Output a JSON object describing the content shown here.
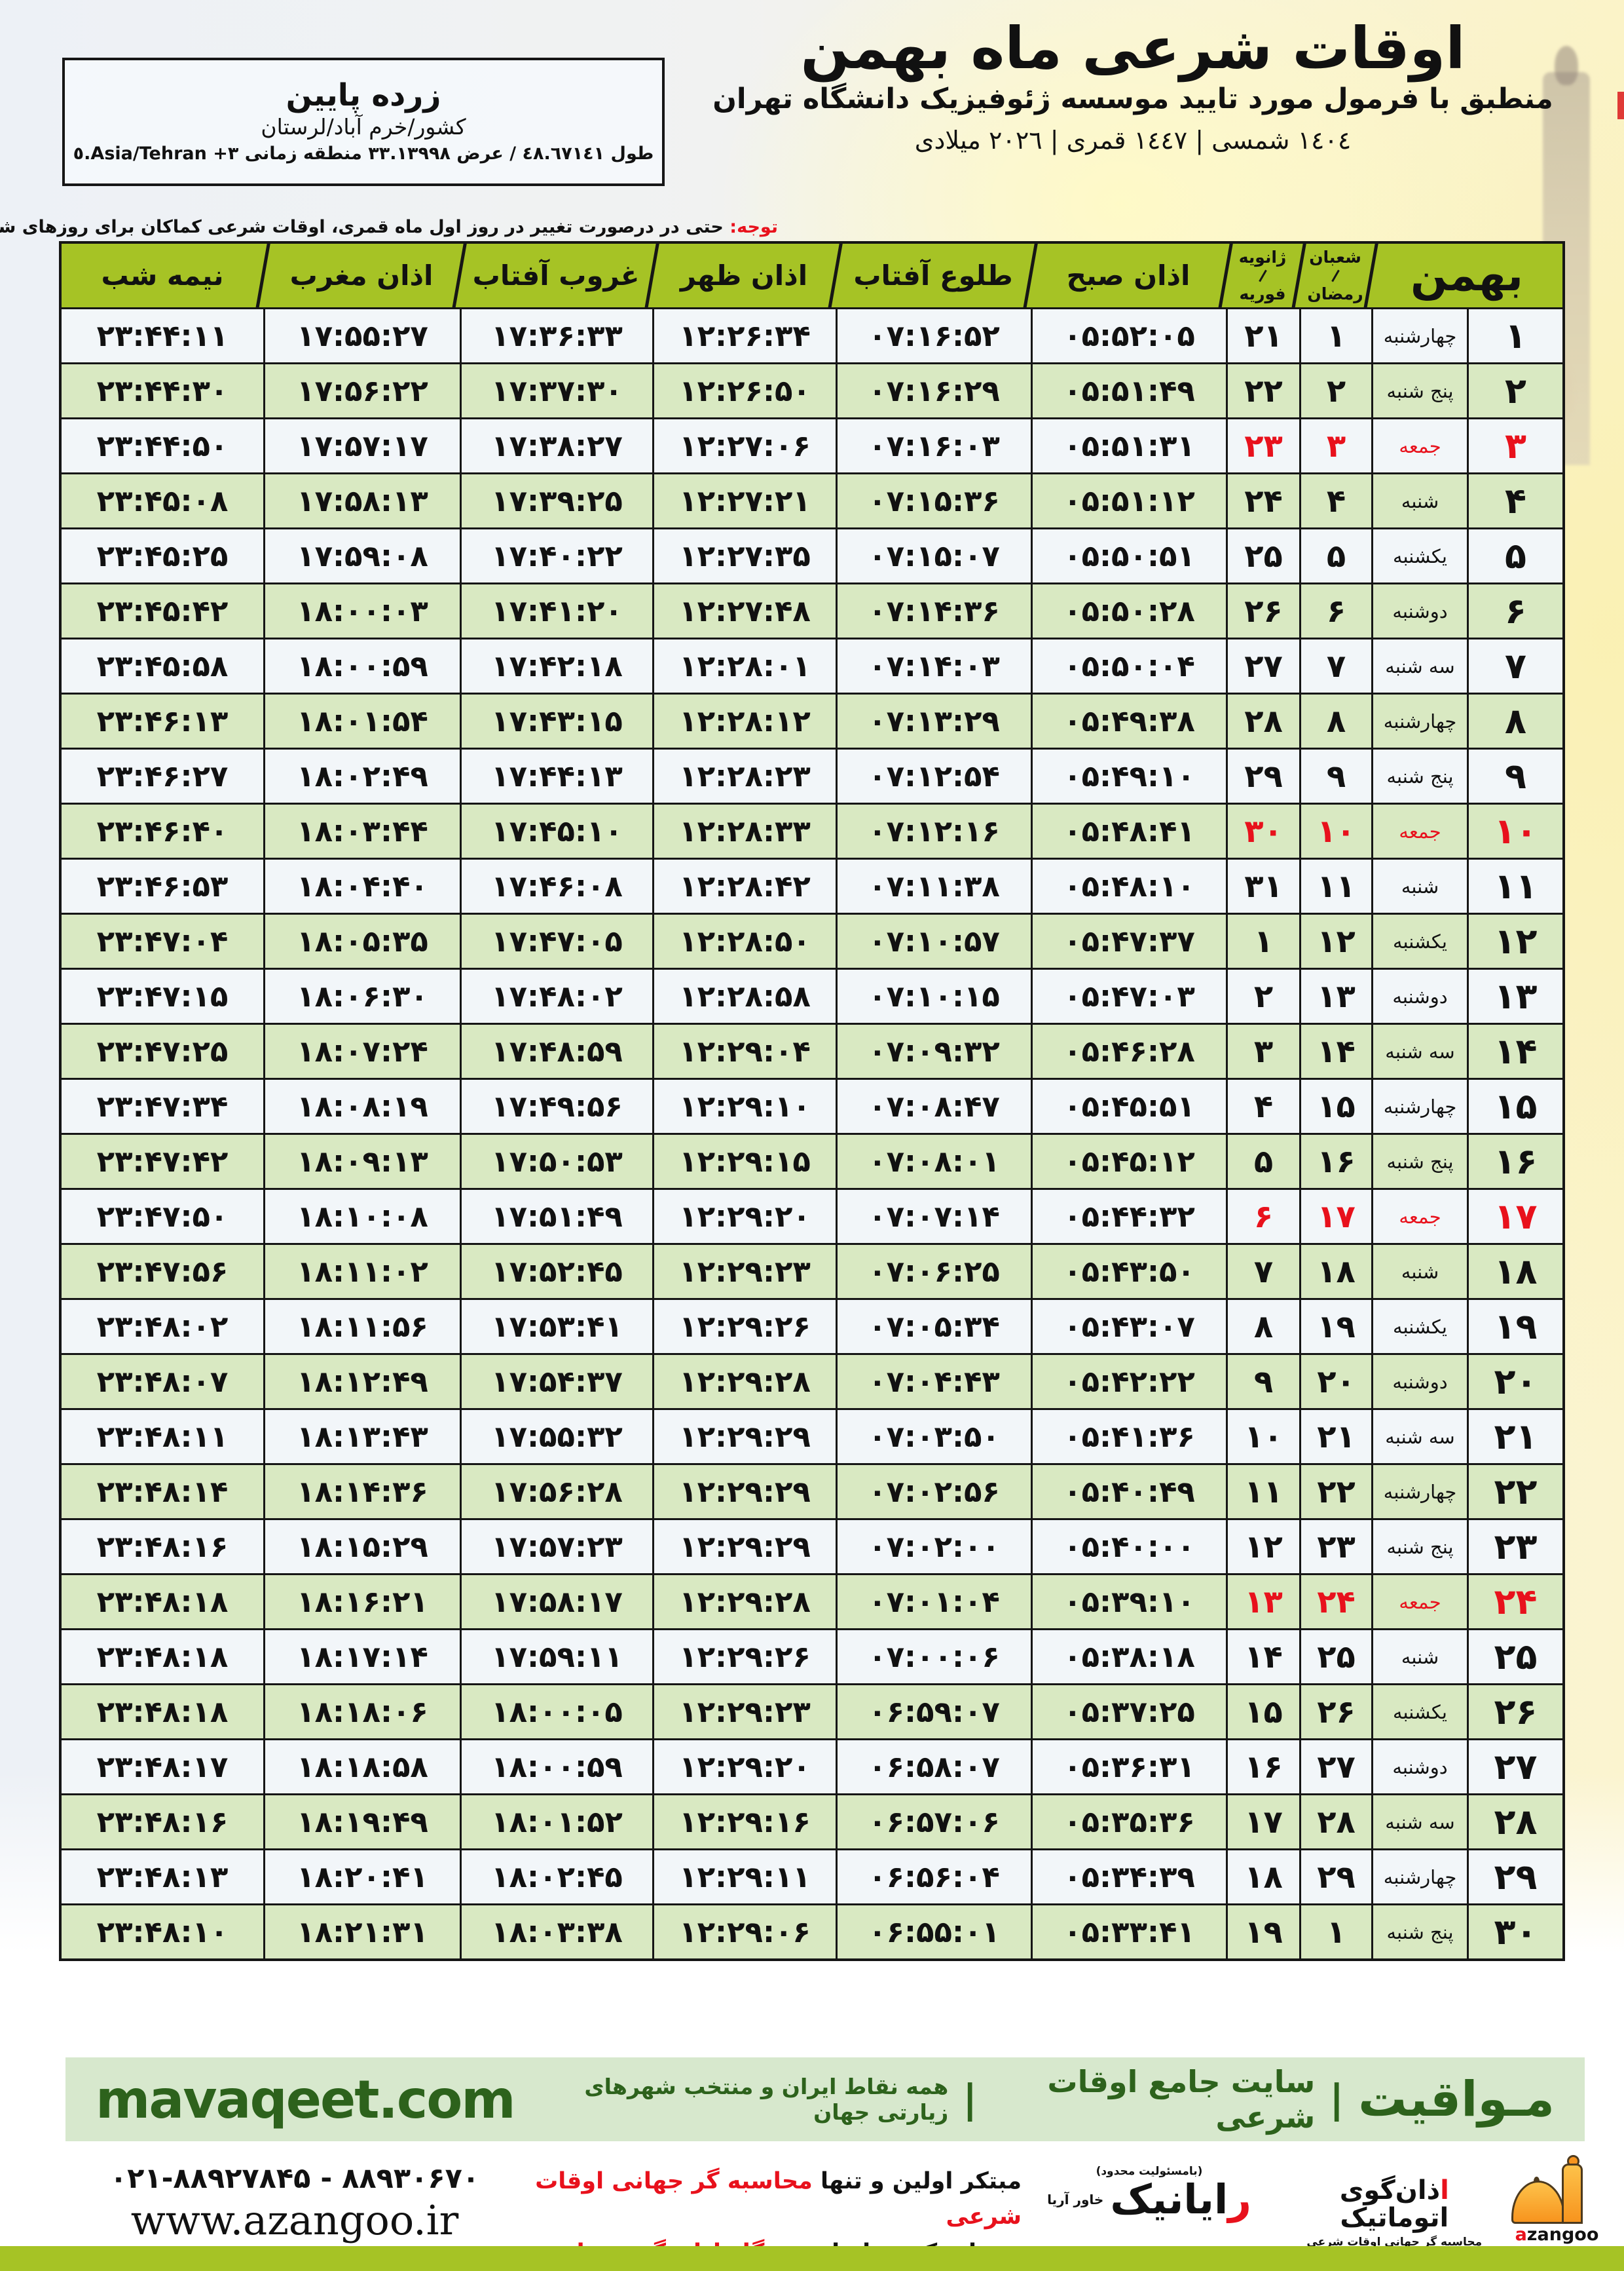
{
  "location": {
    "name": "زرده پایین",
    "region": "کشور/خرم آباد/لرستان",
    "coords": "طول ٤٨.٦٧١٤١ / عرض ۳۳.۱۳۹۹۸ منطقه زمانی Asia/Tehran +۳.٥"
  },
  "header": {
    "title": "اوقات شرعی ماه بهمن",
    "subtitle": "منطبق با فرمول مورد تایید موسسه ژئوفیزیک دانشگاه تهران",
    "dates": "١٤٠٤ شمسی | ١٤٤٧ قمری | ٢٠٢٦ میلادی"
  },
  "notice": {
    "label": "توجه:",
    "text": " حتی در درصورت تغییر در روز اول ماه قمری، اوقات شرعی کماکان برای روزهای شمسی و میلادی معتبر است."
  },
  "table": {
    "headers": {
      "month": "بهمن",
      "hijri_top": "شعبان",
      "hijri_bottom": "رمضان",
      "greg_top": "ژانویه",
      "greg_bottom": "فوریه",
      "sobh": "اذان صبح",
      "tolu": "طلوع آفتاب",
      "zohr": "اذان ظهر",
      "ghorub": "غروب آفتاب",
      "maghreb": "اذان مغرب",
      "nimeshab": "نیمه شب"
    },
    "rows": [
      {
        "day": "۱",
        "weekday": "چهارشنبه",
        "hijri": "۱",
        "greg": "۲۱",
        "sobh": "۰۵:۵۲:۰۵",
        "tolu": "۰۷:۱۶:۵۲",
        "zohr": "۱۲:۲۶:۳۴",
        "ghorub": "۱۷:۳۶:۳۳",
        "maghreb": "۱۷:۵۵:۲۷",
        "nimeshab": "۲۳:۴۴:۱۱",
        "red": false
      },
      {
        "day": "۲",
        "weekday": "پنج شنبه",
        "hijri": "۲",
        "greg": "۲۲",
        "sobh": "۰۵:۵۱:۴۹",
        "tolu": "۰۷:۱۶:۲۹",
        "zohr": "۱۲:۲۶:۵۰",
        "ghorub": "۱۷:۳۷:۳۰",
        "maghreb": "۱۷:۵۶:۲۲",
        "nimeshab": "۲۳:۴۴:۳۰",
        "red": false
      },
      {
        "day": "۳",
        "weekday": "جمعه",
        "hijri": "۳",
        "greg": "۲۳",
        "sobh": "۰۵:۵۱:۳۱",
        "tolu": "۰۷:۱۶:۰۳",
        "zohr": "۱۲:۲۷:۰۶",
        "ghorub": "۱۷:۳۸:۲۷",
        "maghreb": "۱۷:۵۷:۱۷",
        "nimeshab": "۲۳:۴۴:۵۰",
        "red": true
      },
      {
        "day": "۴",
        "weekday": "شنبه",
        "hijri": "۴",
        "greg": "۲۴",
        "sobh": "۰۵:۵۱:۱۲",
        "tolu": "۰۷:۱۵:۳۶",
        "zohr": "۱۲:۲۷:۲۱",
        "ghorub": "۱۷:۳۹:۲۵",
        "maghreb": "۱۷:۵۸:۱۳",
        "nimeshab": "۲۳:۴۵:۰۸",
        "red": false
      },
      {
        "day": "۵",
        "weekday": "یکشنبه",
        "hijri": "۵",
        "greg": "۲۵",
        "sobh": "۰۵:۵۰:۵۱",
        "tolu": "۰۷:۱۵:۰۷",
        "zohr": "۱۲:۲۷:۳۵",
        "ghorub": "۱۷:۴۰:۲۲",
        "maghreb": "۱۷:۵۹:۰۸",
        "nimeshab": "۲۳:۴۵:۲۵",
        "red": false
      },
      {
        "day": "۶",
        "weekday": "دوشنبه",
        "hijri": "۶",
        "greg": "۲۶",
        "sobh": "۰۵:۵۰:۲۸",
        "tolu": "۰۷:۱۴:۳۶",
        "zohr": "۱۲:۲۷:۴۸",
        "ghorub": "۱۷:۴۱:۲۰",
        "maghreb": "۱۸:۰۰:۰۳",
        "nimeshab": "۲۳:۴۵:۴۲",
        "red": false
      },
      {
        "day": "۷",
        "weekday": "سه شنبه",
        "hijri": "۷",
        "greg": "۲۷",
        "sobh": "۰۵:۵۰:۰۴",
        "tolu": "۰۷:۱۴:۰۳",
        "zohr": "۱۲:۲۸:۰۱",
        "ghorub": "۱۷:۴۲:۱۸",
        "maghreb": "۱۸:۰۰:۵۹",
        "nimeshab": "۲۳:۴۵:۵۸",
        "red": false
      },
      {
        "day": "۸",
        "weekday": "چهارشنبه",
        "hijri": "۸",
        "greg": "۲۸",
        "sobh": "۰۵:۴۹:۳۸",
        "tolu": "۰۷:۱۳:۲۹",
        "zohr": "۱۲:۲۸:۱۲",
        "ghorub": "۱۷:۴۳:۱۵",
        "maghreb": "۱۸:۰۱:۵۴",
        "nimeshab": "۲۳:۴۶:۱۳",
        "red": false
      },
      {
        "day": "۹",
        "weekday": "پنج شنبه",
        "hijri": "۹",
        "greg": "۲۹",
        "sobh": "۰۵:۴۹:۱۰",
        "tolu": "۰۷:۱۲:۵۴",
        "zohr": "۱۲:۲۸:۲۳",
        "ghorub": "۱۷:۴۴:۱۳",
        "maghreb": "۱۸:۰۲:۴۹",
        "nimeshab": "۲۳:۴۶:۲۷",
        "red": false
      },
      {
        "day": "۱۰",
        "weekday": "جمعه",
        "hijri": "۱۰",
        "greg": "۳۰",
        "sobh": "۰۵:۴۸:۴۱",
        "tolu": "۰۷:۱۲:۱۶",
        "zohr": "۱۲:۲۸:۳۳",
        "ghorub": "۱۷:۴۵:۱۰",
        "maghreb": "۱۸:۰۳:۴۴",
        "nimeshab": "۲۳:۴۶:۴۰",
        "red": true
      },
      {
        "day": "۱۱",
        "weekday": "شنبه",
        "hijri": "۱۱",
        "greg": "۳۱",
        "sobh": "۰۵:۴۸:۱۰",
        "tolu": "۰۷:۱۱:۳۸",
        "zohr": "۱۲:۲۸:۴۲",
        "ghorub": "۱۷:۴۶:۰۸",
        "maghreb": "۱۸:۰۴:۴۰",
        "nimeshab": "۲۳:۴۶:۵۳",
        "red": false
      },
      {
        "day": "۱۲",
        "weekday": "یکشنبه",
        "hijri": "۱۲",
        "greg": "۱",
        "sobh": "۰۵:۴۷:۳۷",
        "tolu": "۰۷:۱۰:۵۷",
        "zohr": "۱۲:۲۸:۵۰",
        "ghorub": "۱۷:۴۷:۰۵",
        "maghreb": "۱۸:۰۵:۳۵",
        "nimeshab": "۲۳:۴۷:۰۴",
        "red": false
      },
      {
        "day": "۱۳",
        "weekday": "دوشنبه",
        "hijri": "۱۳",
        "greg": "۲",
        "sobh": "۰۵:۴۷:۰۳",
        "tolu": "۰۷:۱۰:۱۵",
        "zohr": "۱۲:۲۸:۵۸",
        "ghorub": "۱۷:۴۸:۰۲",
        "maghreb": "۱۸:۰۶:۳۰",
        "nimeshab": "۲۳:۴۷:۱۵",
        "red": false
      },
      {
        "day": "۱۴",
        "weekday": "سه شنبه",
        "hijri": "۱۴",
        "greg": "۳",
        "sobh": "۰۵:۴۶:۲۸",
        "tolu": "۰۷:۰۹:۳۲",
        "zohr": "۱۲:۲۹:۰۴",
        "ghorub": "۱۷:۴۸:۵۹",
        "maghreb": "۱۸:۰۷:۲۴",
        "nimeshab": "۲۳:۴۷:۲۵",
        "red": false
      },
      {
        "day": "۱۵",
        "weekday": "چهارشنبه",
        "hijri": "۱۵",
        "greg": "۴",
        "sobh": "۰۵:۴۵:۵۱",
        "tolu": "۰۷:۰۸:۴۷",
        "zohr": "۱۲:۲۹:۱۰",
        "ghorub": "۱۷:۴۹:۵۶",
        "maghreb": "۱۸:۰۸:۱۹",
        "nimeshab": "۲۳:۴۷:۳۴",
        "red": false
      },
      {
        "day": "۱۶",
        "weekday": "پنج شنبه",
        "hijri": "۱۶",
        "greg": "۵",
        "sobh": "۰۵:۴۵:۱۲",
        "tolu": "۰۷:۰۸:۰۱",
        "zohr": "۱۲:۲۹:۱۵",
        "ghorub": "۱۷:۵۰:۵۳",
        "maghreb": "۱۸:۰۹:۱۳",
        "nimeshab": "۲۳:۴۷:۴۲",
        "red": false
      },
      {
        "day": "۱۷",
        "weekday": "جمعه",
        "hijri": "۱۷",
        "greg": "۶",
        "sobh": "۰۵:۴۴:۳۲",
        "tolu": "۰۷:۰۷:۱۴",
        "zohr": "۱۲:۲۹:۲۰",
        "ghorub": "۱۷:۵۱:۴۹",
        "maghreb": "۱۸:۱۰:۰۸",
        "nimeshab": "۲۳:۴۷:۵۰",
        "red": true
      },
      {
        "day": "۱۸",
        "weekday": "شنبه",
        "hijri": "۱۸",
        "greg": "۷",
        "sobh": "۰۵:۴۳:۵۰",
        "tolu": "۰۷:۰۶:۲۵",
        "zohr": "۱۲:۲۹:۲۳",
        "ghorub": "۱۷:۵۲:۴۵",
        "maghreb": "۱۸:۱۱:۰۲",
        "nimeshab": "۲۳:۴۷:۵۶",
        "red": false
      },
      {
        "day": "۱۹",
        "weekday": "یکشنبه",
        "hijri": "۱۹",
        "greg": "۸",
        "sobh": "۰۵:۴۳:۰۷",
        "tolu": "۰۷:۰۵:۳۴",
        "zohr": "۱۲:۲۹:۲۶",
        "ghorub": "۱۷:۵۳:۴۱",
        "maghreb": "۱۸:۱۱:۵۶",
        "nimeshab": "۲۳:۴۸:۰۲",
        "red": false
      },
      {
        "day": "۲۰",
        "weekday": "دوشنبه",
        "hijri": "۲۰",
        "greg": "۹",
        "sobh": "۰۵:۴۲:۲۲",
        "tolu": "۰۷:۰۴:۴۳",
        "zohr": "۱۲:۲۹:۲۸",
        "ghorub": "۱۷:۵۴:۳۷",
        "maghreb": "۱۸:۱۲:۴۹",
        "nimeshab": "۲۳:۴۸:۰۷",
        "red": false
      },
      {
        "day": "۲۱",
        "weekday": "سه شنبه",
        "hijri": "۲۱",
        "greg": "۱۰",
        "sobh": "۰۵:۴۱:۳۶",
        "tolu": "۰۷:۰۳:۵۰",
        "zohr": "۱۲:۲۹:۲۹",
        "ghorub": "۱۷:۵۵:۳۲",
        "maghreb": "۱۸:۱۳:۴۳",
        "nimeshab": "۲۳:۴۸:۱۱",
        "red": false
      },
      {
        "day": "۲۲",
        "weekday": "چهارشنبه",
        "hijri": "۲۲",
        "greg": "۱۱",
        "sobh": "۰۵:۴۰:۴۹",
        "tolu": "۰۷:۰۲:۵۶",
        "zohr": "۱۲:۲۹:۲۹",
        "ghorub": "۱۷:۵۶:۲۸",
        "maghreb": "۱۸:۱۴:۳۶",
        "nimeshab": "۲۳:۴۸:۱۴",
        "red": false
      },
      {
        "day": "۲۳",
        "weekday": "پنج شنبه",
        "hijri": "۲۳",
        "greg": "۱۲",
        "sobh": "۰۵:۴۰:۰۰",
        "tolu": "۰۷:۰۲:۰۰",
        "zohr": "۱۲:۲۹:۲۹",
        "ghorub": "۱۷:۵۷:۲۳",
        "maghreb": "۱۸:۱۵:۲۹",
        "nimeshab": "۲۳:۴۸:۱۶",
        "red": false
      },
      {
        "day": "۲۴",
        "weekday": "جمعه",
        "hijri": "۲۴",
        "greg": "۱۳",
        "sobh": "۰۵:۳۹:۱۰",
        "tolu": "۰۷:۰۱:۰۴",
        "zohr": "۱۲:۲۹:۲۸",
        "ghorub": "۱۷:۵۸:۱۷",
        "maghreb": "۱۸:۱۶:۲۱",
        "nimeshab": "۲۳:۴۸:۱۸",
        "red": true
      },
      {
        "day": "۲۵",
        "weekday": "شنبه",
        "hijri": "۲۵",
        "greg": "۱۴",
        "sobh": "۰۵:۳۸:۱۸",
        "tolu": "۰۷:۰۰:۰۶",
        "zohr": "۱۲:۲۹:۲۶",
        "ghorub": "۱۷:۵۹:۱۱",
        "maghreb": "۱۸:۱۷:۱۴",
        "nimeshab": "۲۳:۴۸:۱۸",
        "red": false
      },
      {
        "day": "۲۶",
        "weekday": "یکشنبه",
        "hijri": "۲۶",
        "greg": "۱۵",
        "sobh": "۰۵:۳۷:۲۵",
        "tolu": "۰۶:۵۹:۰۷",
        "zohr": "۱۲:۲۹:۲۳",
        "ghorub": "۱۸:۰۰:۰۵",
        "maghreb": "۱۸:۱۸:۰۶",
        "nimeshab": "۲۳:۴۸:۱۸",
        "red": false
      },
      {
        "day": "۲۷",
        "weekday": "دوشنبه",
        "hijri": "۲۷",
        "greg": "۱۶",
        "sobh": "۰۵:۳۶:۳۱",
        "tolu": "۰۶:۵۸:۰۷",
        "zohr": "۱۲:۲۹:۲۰",
        "ghorub": "۱۸:۰۰:۵۹",
        "maghreb": "۱۸:۱۸:۵۸",
        "nimeshab": "۲۳:۴۸:۱۷",
        "red": false
      },
      {
        "day": "۲۸",
        "weekday": "سه شنبه",
        "hijri": "۲۸",
        "greg": "۱۷",
        "sobh": "۰۵:۳۵:۳۶",
        "tolu": "۰۶:۵۷:۰۶",
        "zohr": "۱۲:۲۹:۱۶",
        "ghorub": "۱۸:۰۱:۵۲",
        "maghreb": "۱۸:۱۹:۴۹",
        "nimeshab": "۲۳:۴۸:۱۶",
        "red": false
      },
      {
        "day": "۲۹",
        "weekday": "چهارشنبه",
        "hijri": "۲۹",
        "greg": "۱۸",
        "sobh": "۰۵:۳۴:۳۹",
        "tolu": "۰۶:۵۶:۰۴",
        "zohr": "۱۲:۲۹:۱۱",
        "ghorub": "۱۸:۰۲:۴۵",
        "maghreb": "۱۸:۲۰:۴۱",
        "nimeshab": "۲۳:۴۸:۱۳",
        "red": false
      },
      {
        "day": "۳۰",
        "weekday": "پنج شنبه",
        "hijri": "۱",
        "greg": "۱۹",
        "sobh": "۰۵:۳۳:۴۱",
        "tolu": "۰۶:۵۵:۰۱",
        "zohr": "۱۲:۲۹:۰۶",
        "ghorub": "۱۸:۰۳:۳۸",
        "maghreb": "۱۸:۲۱:۳۱",
        "nimeshab": "۲۳:۴۸:۱۰",
        "red": false
      }
    ]
  },
  "mavaqeet": {
    "brand": "مـواقیت",
    "sep": "|",
    "tagline1": "سایت جامع اوقات شرعی",
    "tagline2": "همه نقاط ایران و منتخب شهرهای زیارتی جهان",
    "site": "mavaqeet.com"
  },
  "footer": {
    "phone": "۰۲۱-۸۸۹۲۷۸۴۵ - ۸۸۹۳۰۶۷۰",
    "website": "www.azangoo.ir",
    "line1_black": "مبتکر اولین و تنها ",
    "line1_red": "محاسبه گر جهانی اوقات شرعی",
    "line2_black": "و تولید کننده انواع ",
    "line2_red": "دستگاه اذان گوی تمام خودکار ماهواره ای",
    "rayanik_note": "(بامسئولیت محدود)",
    "rayanik_first": "ر",
    "rayanik_rest": "ایانیک",
    "rayanik_small": "خاور آریا",
    "azangoo_fa_first": "ا",
    "azangoo_fa_rest": "ذان‌گوی اتوماتیک",
    "azangoo_sub": "محاسبه گر جهانی اوقات شرعی",
    "azangoo_en_first": "a",
    "azangoo_en_rest": "zangoo"
  }
}
